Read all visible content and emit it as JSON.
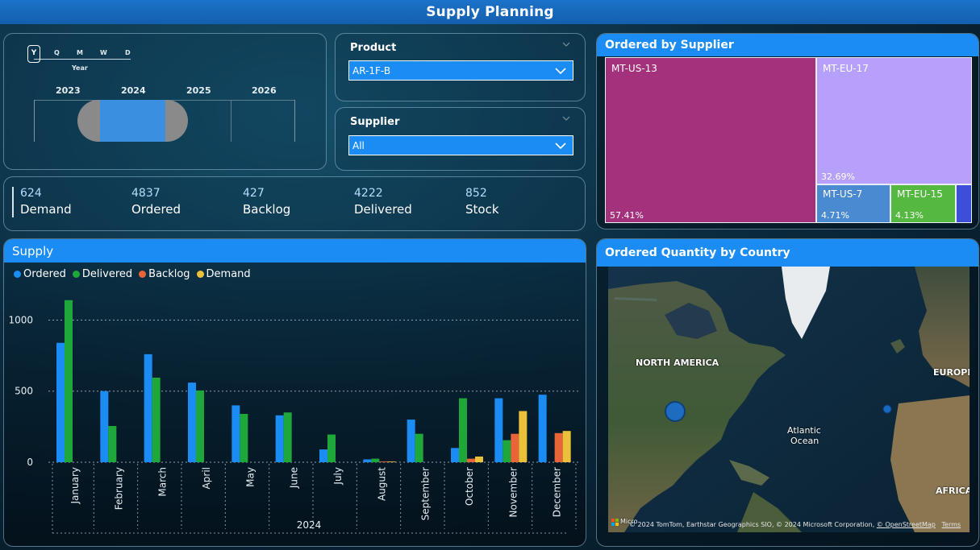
{
  "page": {
    "title": "Supply Planning"
  },
  "date_slicer": {
    "granularity": [
      "Y",
      "Q",
      "M",
      "W",
      "D"
    ],
    "granularity_label": "Year",
    "years": [
      "2023",
      "2024",
      "2025",
      "2026"
    ],
    "range_color": "#3b8fe0"
  },
  "product_slicer": {
    "title": "Product",
    "value": "AR-1F-B"
  },
  "supplier_slicer": {
    "title": "Supplier",
    "value": "All"
  },
  "kpis": [
    {
      "value": "624",
      "label": "Demand"
    },
    {
      "value": "4837",
      "label": "Ordered"
    },
    {
      "value": "427",
      "label": "Backlog"
    },
    {
      "value": "4222",
      "label": "Delivered"
    },
    {
      "value": "852",
      "label": "Stock"
    }
  ],
  "supply": {
    "title": "Supply",
    "legend": [
      {
        "name": "Ordered",
        "color": "#1a8cf3"
      },
      {
        "name": "Delivered",
        "color": "#1fa83a"
      },
      {
        "name": "Backlog",
        "color": "#e8653a"
      },
      {
        "name": "Demand",
        "color": "#ecc13a"
      }
    ]
  },
  "chart_data": {
    "type": "bar",
    "title": "Supply",
    "xlabel": "2024",
    "ylabel": "",
    "ylim": [
      0,
      1150
    ],
    "yticks": [
      0,
      500,
      1000
    ],
    "categories": [
      "January",
      "February",
      "March",
      "April",
      "May",
      "June",
      "July",
      "August",
      "September",
      "October",
      "November",
      "December"
    ],
    "series": [
      {
        "name": "Ordered",
        "color": "#1a8cf3",
        "values": [
          840,
          500,
          760,
          560,
          400,
          330,
          90,
          20,
          300,
          100,
          450,
          475
        ]
      },
      {
        "name": "Delivered",
        "color": "#1fa83a",
        "values": [
          1140,
          255,
          595,
          505,
          340,
          350,
          195,
          25,
          200,
          450,
          155,
          0
        ]
      },
      {
        "name": "Backlog",
        "color": "#e8653a",
        "values": [
          0,
          0,
          0,
          0,
          0,
          0,
          0,
          5,
          0,
          25,
          200,
          205
        ]
      },
      {
        "name": "Demand",
        "color": "#ecc13a",
        "values": [
          0,
          0,
          0,
          0,
          0,
          0,
          0,
          5,
          0,
          40,
          360,
          220
        ]
      }
    ]
  },
  "treemap": {
    "title": "Ordered by Supplier",
    "tiles": [
      {
        "name": "MT-US-13",
        "pct": "57.41%",
        "color": "#a3317c"
      },
      {
        "name": "MT-EU-17",
        "pct": "32.69%",
        "color": "#b6a0fb"
      },
      {
        "name": "MT-US-7",
        "pct": "4.71%",
        "color": "#4a8ad0"
      },
      {
        "name": "MT-EU-15",
        "pct": "4.13%",
        "color": "#55b840"
      },
      {
        "name": "",
        "pct": "",
        "color": "#3d4fd8"
      }
    ]
  },
  "map": {
    "title": "Ordered Quantity by Country",
    "labels": [
      "NORTH AMERICA",
      "EUROPE",
      "Atlantic",
      "Ocean",
      "AFRICA"
    ],
    "logo": "Microsoft Bing",
    "attribution": "© 2024 TomTom, Earthstar Geographics SIO, © 2024 Microsoft Corporation, ",
    "osm": "© OpenStreetMap",
    "terms": "Terms"
  }
}
